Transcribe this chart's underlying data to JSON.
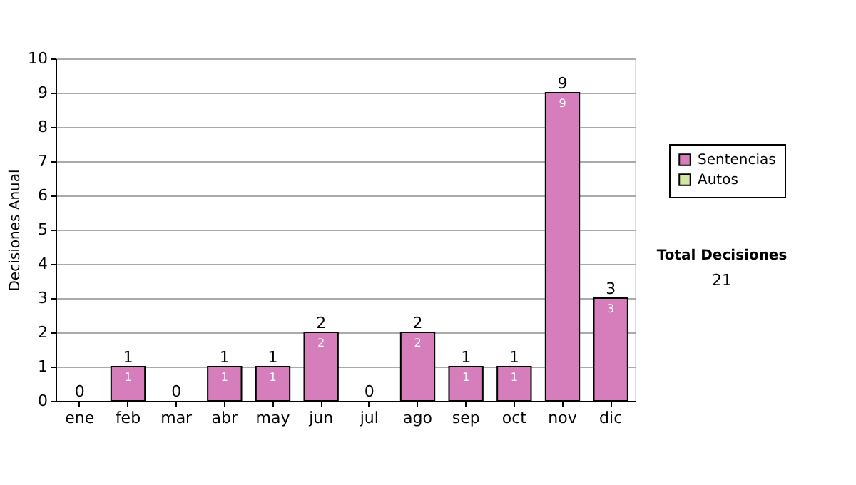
{
  "chart_data": {
    "type": "bar",
    "stacked": true,
    "ylabel": "Decisiones Anual",
    "categories": [
      "ene",
      "feb",
      "mar",
      "abr",
      "may",
      "jun",
      "jul",
      "ago",
      "sep",
      "oct",
      "nov",
      "dic"
    ],
    "series": [
      {
        "name": "Sentencias",
        "color": "#d67ebc",
        "values": [
          0,
          1,
          0,
          1,
          1,
          2,
          0,
          2,
          1,
          1,
          9,
          3
        ],
        "value_labels": [
          null,
          "1",
          null,
          "1",
          "1",
          "2",
          null,
          "2",
          "1",
          "1",
          "9",
          "3"
        ]
      },
      {
        "name": "Autos",
        "color": "#d4e6a4",
        "values": [
          0,
          0,
          0,
          0,
          0,
          0,
          0,
          0,
          0,
          0,
          0,
          0
        ]
      }
    ],
    "totals": [
      "0",
      "1",
      "0",
      "1",
      "1",
      "2",
      "0",
      "2",
      "1",
      "1",
      "9",
      "3"
    ],
    "ylim": [
      0,
      10
    ],
    "yticks": [
      0,
      1,
      2,
      3,
      4,
      5,
      6,
      7,
      8,
      9,
      10
    ],
    "grid": "y",
    "legend": "right",
    "annotations": [
      "Total Decisiones",
      "21"
    ]
  }
}
